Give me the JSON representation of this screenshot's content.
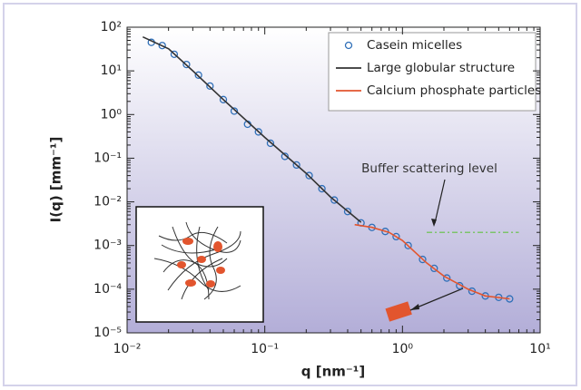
{
  "chart_data": {
    "type": "line",
    "x_label": "q [nm⁻¹]",
    "y_label": "I(q) [mm⁻¹]",
    "xscale": "log",
    "yscale": "log",
    "xlim": [
      0.01,
      10
    ],
    "ylim": [
      1e-05,
      100
    ],
    "xticks": [
      {
        "value": 0.01,
        "label": "10⁻²"
      },
      {
        "value": 0.1,
        "label": "10⁻¹"
      },
      {
        "value": 1,
        "label": "10⁰"
      },
      {
        "value": 10,
        "label": "10¹"
      }
    ],
    "yticks": [
      {
        "value": 1e-05,
        "label": "10⁻⁵"
      },
      {
        "value": 0.0001,
        "label": "10⁻⁴"
      },
      {
        "value": 0.001,
        "label": "10⁻³"
      },
      {
        "value": 0.01,
        "label": "10⁻²"
      },
      {
        "value": 0.1,
        "label": "10⁻¹"
      },
      {
        "value": 1,
        "label": "10⁰"
      },
      {
        "value": 10,
        "label": "10¹"
      },
      {
        "value": 100,
        "label": "10²"
      }
    ],
    "legend": "upper right",
    "series": [
      {
        "name": "Casein micelles",
        "style": "markers",
        "color": "#2f6fb8",
        "x": [
          0.015,
          0.018,
          0.022,
          0.027,
          0.033,
          0.04,
          0.05,
          0.06,
          0.075,
          0.09,
          0.11,
          0.14,
          0.17,
          0.21,
          0.26,
          0.32,
          0.4,
          0.5,
          0.6,
          0.75,
          0.9,
          1.1,
          1.4,
          1.7,
          2.1,
          2.6,
          3.2,
          4,
          5,
          6
        ],
        "values": [
          45,
          38,
          24,
          14,
          8,
          4.5,
          2.2,
          1.2,
          0.6,
          0.4,
          0.22,
          0.11,
          0.07,
          0.04,
          0.02,
          0.011,
          0.006,
          0.0033,
          0.0026,
          0.0021,
          0.0016,
          0.001,
          0.00048,
          0.0003,
          0.00018,
          0.00012,
          9e-05,
          7e-05,
          6.5e-05,
          6e-05
        ]
      },
      {
        "name": "Large globular structure",
        "style": "line",
        "color": "#333333",
        "x": [
          0.013,
          0.02,
          0.03,
          0.05,
          0.1,
          0.2,
          0.3,
          0.5
        ],
        "values": [
          60,
          32,
          10,
          2.2,
          0.3,
          0.045,
          0.013,
          0.0034
        ]
      },
      {
        "name": "Calcium phosphate particles",
        "style": "line",
        "color": "#e2552e",
        "x": [
          0.45,
          0.6,
          0.8,
          1,
          1.5,
          2,
          3,
          4,
          6
        ],
        "values": [
          0.003,
          0.0026,
          0.002,
          0.0013,
          0.0004,
          0.0002,
          0.0001,
          7e-05,
          6e-05
        ]
      }
    ],
    "buffer_level": {
      "label": "Buffer scattering level",
      "value": 0.002,
      "x": [
        1.5,
        7
      ],
      "color": "#7cc46a"
    }
  }
}
